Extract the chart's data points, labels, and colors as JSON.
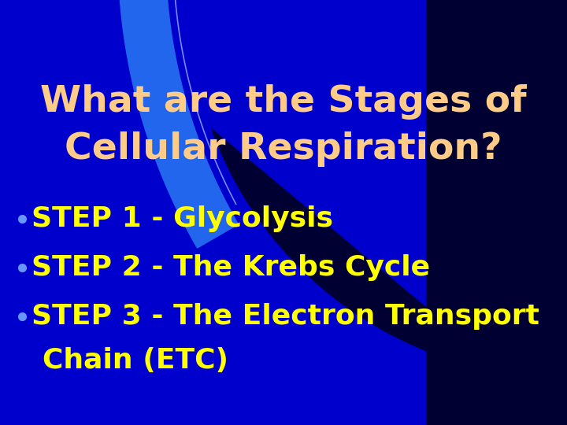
{
  "title_line1": "What are the Stages of",
  "title_line2": "Cellular Respiration?",
  "title_color": "#FFCC88",
  "bullet_color": "#FFFF00",
  "bullet_dot_color": "#6699FF",
  "bg_blue": "#0000CC",
  "bg_dark": "#000033",
  "swirl_color": "#2266EE",
  "swirl_thin_color": "#99AAFF",
  "bullet1": "STEP 1 - Glycolysis",
  "bullet2": "STEP 2 - The Krebs Cycle",
  "bullet3": "STEP 3 - The Electron Transport",
  "bullet3b": "Chain (ETC)",
  "title_fontsize": 34,
  "bullet_fontsize": 26
}
